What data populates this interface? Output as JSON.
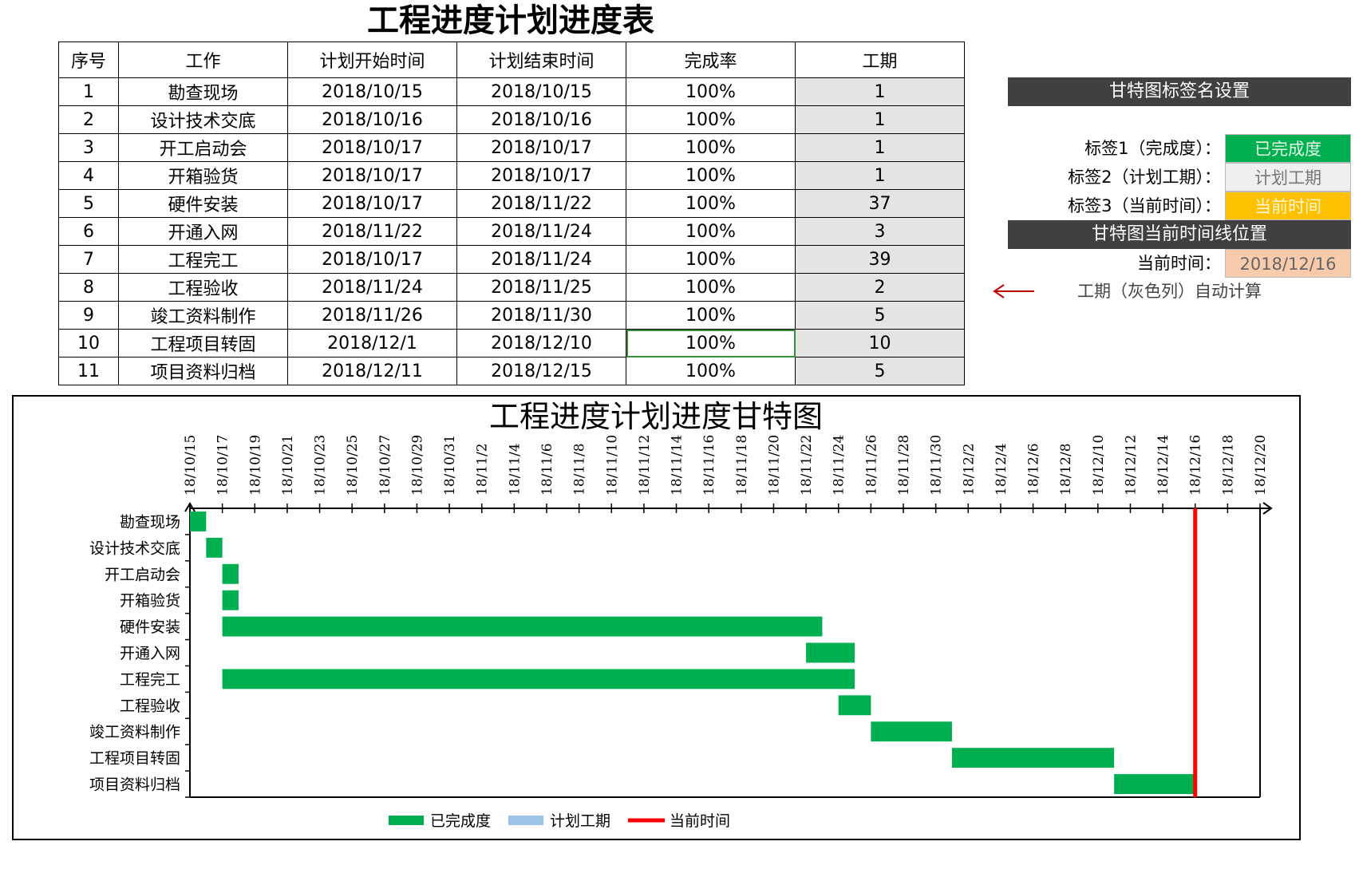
{
  "sheet": {
    "title": "工程进度计划进度表",
    "columns": [
      "序号",
      "工作",
      "计划开始时间",
      "计划结束时间",
      "完成率",
      "工期"
    ],
    "rows": [
      {
        "no": "1",
        "task": "勘查现场",
        "start": "2018/10/15",
        "end": "2018/10/15",
        "rate": "100%",
        "duration": "1"
      },
      {
        "no": "2",
        "task": "设计技术交底",
        "start": "2018/10/16",
        "end": "2018/10/16",
        "rate": "100%",
        "duration": "1"
      },
      {
        "no": "3",
        "task": "开工启动会",
        "start": "2018/10/17",
        "end": "2018/10/17",
        "rate": "100%",
        "duration": "1"
      },
      {
        "no": "4",
        "task": "开箱验货",
        "start": "2018/10/17",
        "end": "2018/10/17",
        "rate": "100%",
        "duration": "1"
      },
      {
        "no": "5",
        "task": "硬件安装",
        "start": "2018/10/17",
        "end": "2018/11/22",
        "rate": "100%",
        "duration": "37"
      },
      {
        "no": "6",
        "task": "开通入网",
        "start": "2018/11/22",
        "end": "2018/11/24",
        "rate": "100%",
        "duration": "3"
      },
      {
        "no": "7",
        "task": "工程完工",
        "start": "2018/10/17",
        "end": "2018/11/24",
        "rate": "100%",
        "duration": "39"
      },
      {
        "no": "8",
        "task": "工程验收",
        "start": "2018/11/24",
        "end": "2018/11/25",
        "rate": "100%",
        "duration": "2"
      },
      {
        "no": "9",
        "task": "竣工资料制作",
        "start": "2018/11/26",
        "end": "2018/11/30",
        "rate": "100%",
        "duration": "5"
      },
      {
        "no": "10",
        "task": "工程项目转固",
        "start": "2018/12/1",
        "end": "2018/12/10",
        "rate": "100%",
        "duration": "10"
      },
      {
        "no": "11",
        "task": "项目资料归档",
        "start": "2018/12/11",
        "end": "2018/12/15",
        "rate": "100%",
        "duration": "5"
      }
    ]
  },
  "settings": {
    "label_header": "甘特图标签名设置",
    "label1_caption": "标签1（完成度）：",
    "label1_value": "已完成度",
    "label2_caption": "标签2（计划工期）：",
    "label2_value": "计划工期",
    "label3_caption": "标签3（当前时间）：",
    "label3_value": "当前时间",
    "timeline_header": "甘特图当前时间线位置",
    "current_caption": "当前时间：",
    "current_value": "2018/12/16",
    "note": "工期（灰色列）自动计算",
    "colors": {
      "done": "#00b050",
      "plan": "#9dc3e6",
      "current": "#ff0000",
      "header": "#404040",
      "label3": "#ffc000",
      "current_value_bg": "#f8cbad",
      "label2_bg": "#efefef"
    }
  },
  "chart_data": {
    "type": "bar",
    "orientation": "horizontal-gantt",
    "title": "工程进度计划进度甘特图",
    "categories": [
      "勘查现场",
      "设计技术交底",
      "开工启动会",
      "开箱验货",
      "硬件安装",
      "开通入网",
      "工程完工",
      "工程验收",
      "竣工资料制作",
      "工程项目转固",
      "项目资料归档"
    ],
    "series": [
      {
        "name": "已完成度",
        "starts": [
          "2018-10-15",
          "2018-10-16",
          "2018-10-17",
          "2018-10-17",
          "2018-10-17",
          "2018-11-22",
          "2018-10-17",
          "2018-11-24",
          "2018-11-26",
          "2018-12-01",
          "2018-12-11"
        ],
        "durations": [
          1,
          1,
          1,
          1,
          37,
          3,
          39,
          2,
          5,
          10,
          5
        ]
      },
      {
        "name": "计划工期",
        "starts": [],
        "durations": []
      },
      {
        "name": "当前时间",
        "x": "2018-12-16"
      }
    ],
    "x_ticks": [
      "18/10/15",
      "18/10/17",
      "18/10/19",
      "18/10/21",
      "18/10/23",
      "18/10/25",
      "18/10/27",
      "18/10/29",
      "18/10/31",
      "18/11/2",
      "18/11/4",
      "18/11/6",
      "18/11/8",
      "18/11/10",
      "18/11/12",
      "18/11/14",
      "18/11/16",
      "18/11/18",
      "18/11/20",
      "18/11/22",
      "18/11/24",
      "18/11/26",
      "18/11/28",
      "18/11/30",
      "18/12/2",
      "18/12/4",
      "18/12/6",
      "18/12/8",
      "18/12/10",
      "18/12/12",
      "18/12/14",
      "18/12/16",
      "18/12/18",
      "18/12/20"
    ],
    "xlim": [
      "2018-10-15",
      "2018-12-20"
    ],
    "legend": [
      "已完成度",
      "计划工期",
      "当前时间"
    ],
    "legend_position": "bottom"
  }
}
